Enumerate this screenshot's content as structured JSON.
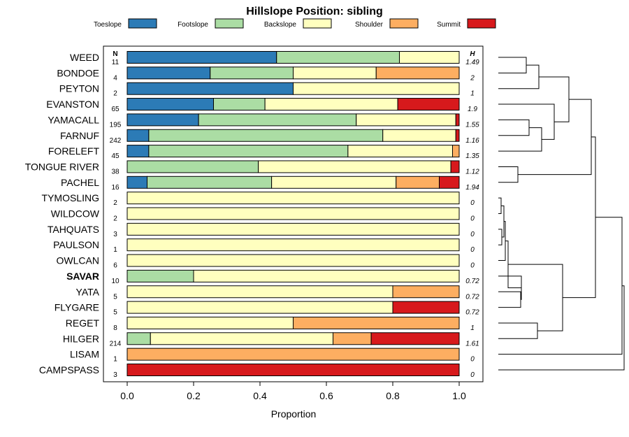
{
  "chart_data": {
    "type": "bar",
    "stacked": true,
    "orientation": "horizontal",
    "title": "Hillslope Position: sibling",
    "xlabel": "Proportion",
    "xlim": [
      0,
      1
    ],
    "xticks": [
      "0.0",
      "0.2",
      "0.4",
      "0.6",
      "0.8",
      "1.0"
    ],
    "n_header": "N",
    "h_header": "H",
    "legend": [
      {
        "name": "Toeslope",
        "color": "#2c7bb6"
      },
      {
        "name": "Footslope",
        "color": "#abdda4"
      },
      {
        "name": "Backslope",
        "color": "#ffffbf"
      },
      {
        "name": "Shoulder",
        "color": "#fdae61"
      },
      {
        "name": "Summit",
        "color": "#d7191c"
      }
    ],
    "rows": [
      {
        "label": "WEED",
        "n": "11",
        "h": "1.49",
        "values": [
          0.45,
          0.37,
          0.18,
          0,
          0
        ]
      },
      {
        "label": "BONDOE",
        "n": "4",
        "h": "2",
        "values": [
          0.25,
          0.25,
          0.25,
          0.25,
          0
        ]
      },
      {
        "label": "PEYTON",
        "n": "2",
        "h": "1",
        "values": [
          0.5,
          0,
          0.5,
          0,
          0
        ]
      },
      {
        "label": "EVANSTON",
        "n": "65",
        "h": "1.9",
        "values": [
          0.26,
          0.155,
          0.4,
          0,
          0.185
        ]
      },
      {
        "label": "YAMACALL",
        "n": "195",
        "h": "1.55",
        "values": [
          0.215,
          0.475,
          0.3,
          0,
          0.01
        ]
      },
      {
        "label": "FARNUF",
        "n": "242",
        "h": "1.16",
        "values": [
          0.065,
          0.705,
          0.22,
          0,
          0.01
        ]
      },
      {
        "label": "FORELEFT",
        "n": "45",
        "h": "1.35",
        "values": [
          0.065,
          0.6,
          0.315,
          0.02,
          0
        ]
      },
      {
        "label": "TONGUE RIVER",
        "n": "38",
        "h": "1.12",
        "values": [
          0,
          0.395,
          0.58,
          0,
          0.025
        ]
      },
      {
        "label": "PACHEL",
        "n": "16",
        "h": "1.94",
        "values": [
          0.06,
          0.375,
          0.375,
          0.13,
          0.06
        ]
      },
      {
        "label": "TYMOSLING",
        "n": "2",
        "h": "0",
        "values": [
          0,
          0,
          1,
          0,
          0
        ]
      },
      {
        "label": "WILDCOW",
        "n": "2",
        "h": "0",
        "values": [
          0,
          0,
          1,
          0,
          0
        ]
      },
      {
        "label": "TAHQUATS",
        "n": "3",
        "h": "0",
        "values": [
          0,
          0,
          1,
          0,
          0
        ]
      },
      {
        "label": "PAULSON",
        "n": "1",
        "h": "0",
        "values": [
          0,
          0,
          1,
          0,
          0
        ]
      },
      {
        "label": "OWLCAN",
        "n": "6",
        "h": "0",
        "values": [
          0,
          0,
          1,
          0,
          0
        ]
      },
      {
        "label": "SAVAR",
        "n": "10",
        "h": "0.72",
        "bold": true,
        "values": [
          0,
          0.2,
          0.8,
          0,
          0
        ]
      },
      {
        "label": "YATA",
        "n": "5",
        "h": "0.72",
        "values": [
          0,
          0,
          0.8,
          0.2,
          0
        ]
      },
      {
        "label": "FLYGARE",
        "n": "5",
        "h": "0.72",
        "values": [
          0,
          0,
          0.8,
          0,
          0.2
        ]
      },
      {
        "label": "REGET",
        "n": "8",
        "h": "1",
        "values": [
          0,
          0,
          0.5,
          0.5,
          0
        ]
      },
      {
        "label": "HILGER",
        "n": "214",
        "h": "1.61",
        "values": [
          0,
          0.07,
          0.55,
          0.115,
          0.265
        ]
      },
      {
        "label": "LISAM",
        "n": "1",
        "h": "0",
        "values": [
          0,
          0,
          0,
          1,
          0
        ]
      },
      {
        "label": "CAMPSPASS",
        "n": "3",
        "h": "0",
        "values": [
          0,
          0,
          0,
          0,
          1
        ]
      }
    ]
  }
}
